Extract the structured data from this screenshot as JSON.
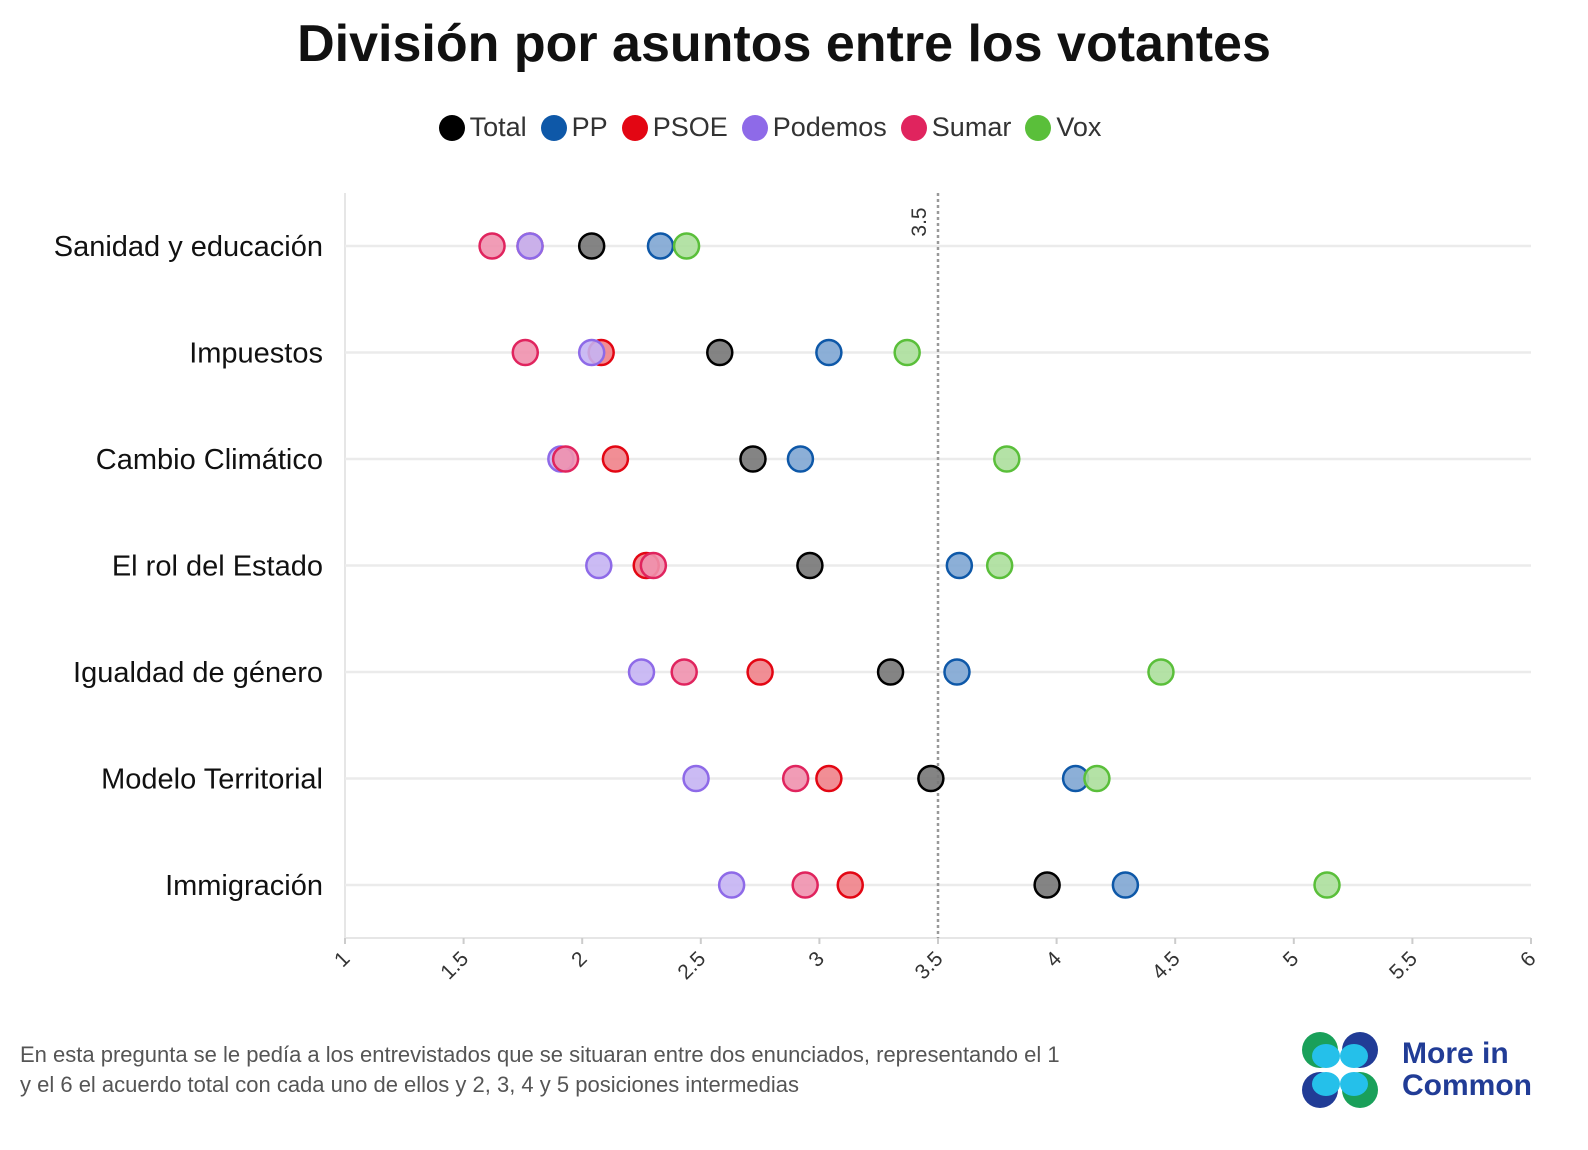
{
  "chart_data": {
    "type": "scatter",
    "title": "División por asuntos entre los votantes",
    "xlim": [
      1,
      6
    ],
    "x_ticks": [
      "1",
      "1.5",
      "2",
      "2.5",
      "3",
      "3.5",
      "4",
      "4.5",
      "5",
      "5.5",
      "6"
    ],
    "reference_line": {
      "value": 3.5,
      "label": "3.5"
    },
    "categories": [
      "Sanidad y educación",
      "Impuestos",
      "Cambio Climático",
      "El rol del Estado",
      "Igualdad de género",
      "Modelo Territorial",
      "Immigración"
    ],
    "series": [
      {
        "name": "Total",
        "color": "#000000",
        "fill": "#777777",
        "values": [
          2.04,
          2.58,
          2.72,
          2.96,
          3.3,
          3.47,
          3.96
        ]
      },
      {
        "name": "PP",
        "color": "#0e58a8",
        "fill": "#7fa6d3",
        "values": [
          2.33,
          3.04,
          2.92,
          3.59,
          3.58,
          4.08,
          4.29
        ]
      },
      {
        "name": "PSOE",
        "color": "#e30613",
        "fill": "#f08289",
        "values": [
          1.78,
          2.08,
          2.14,
          2.27,
          2.75,
          3.04,
          3.13
        ]
      },
      {
        "name": "Podemos",
        "color": "#8e6ae8",
        "fill": "#c5b4f3",
        "values": [
          1.78,
          2.04,
          1.91,
          2.07,
          2.25,
          2.48,
          2.63
        ]
      },
      {
        "name": "Sumar",
        "color": "#e0245e",
        "fill": "#ef91ae",
        "values": [
          1.62,
          1.76,
          1.93,
          2.3,
          2.43,
          2.9,
          2.94
        ]
      },
      {
        "name": "Vox",
        "color": "#5abf3a",
        "fill": "#acdf9c",
        "values": [
          2.44,
          3.37,
          3.79,
          3.76,
          4.44,
          4.17,
          5.14
        ]
      }
    ],
    "legend": "top-center",
    "grid": true
  },
  "footnote": {
    "line1": "En esta pregunta se le pedía a los entrevistados que se situaran entre dos enunciados, representando el 1",
    "line2": "y el 6 el acuerdo total con cada uno de ellos y 2, 3, 4 y 5 posiciones intermedias"
  },
  "logo": {
    "line1": "More in",
    "line2": "Common"
  }
}
